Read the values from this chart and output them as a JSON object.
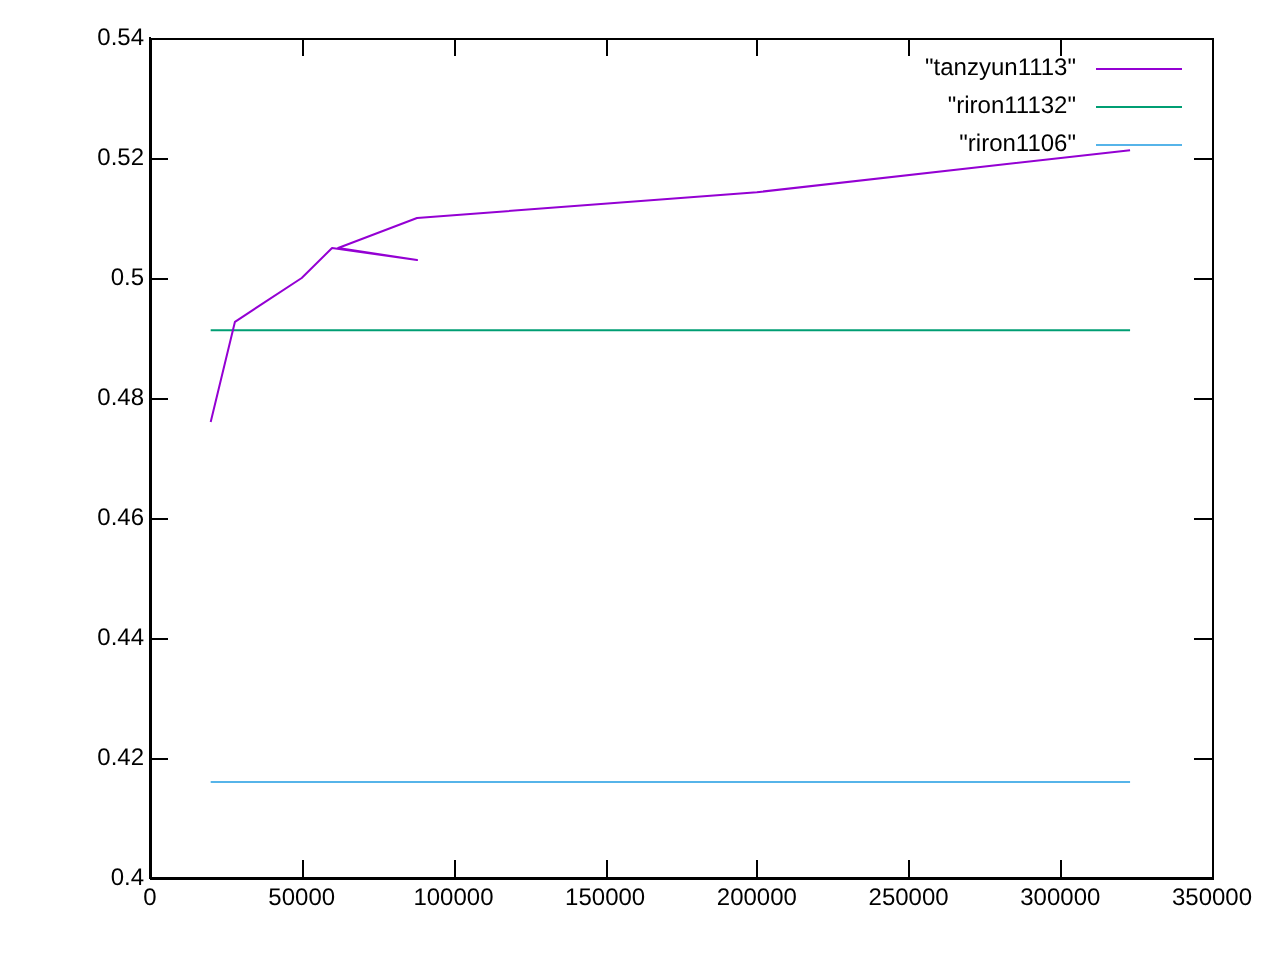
{
  "chart_data": {
    "type": "line",
    "series": [
      {
        "name": "\"tanzyun1113\"",
        "color": "#9400d3",
        "x": [
          20000,
          28000,
          50000,
          60000,
          88000,
          62000,
          88000,
          200000,
          323000
        ],
        "values": [
          0.476,
          0.4927,
          0.5,
          0.505,
          0.503,
          0.505,
          0.51,
          0.5143,
          0.5213
        ]
      },
      {
        "name": "\"riron11132\"",
        "color": "#009e73",
        "x": [
          20000,
          323000
        ],
        "values": [
          0.4913,
          0.4913
        ]
      },
      {
        "name": "\"riron1106\"",
        "color": "#56b4e9",
        "x": [
          20000,
          323000
        ],
        "values": [
          0.416,
          0.416
        ]
      }
    ],
    "xlim": [
      0,
      350000
    ],
    "xticks": [
      0,
      50000,
      100000,
      150000,
      200000,
      250000,
      300000,
      350000
    ],
    "ylim": [
      0.4,
      0.54
    ],
    "yticks": [
      0.4,
      0.42,
      0.44,
      0.46,
      0.48,
      0.5,
      0.52,
      0.54
    ],
    "grid": false,
    "legend": "top right",
    "marker": "none",
    "line_style": "solid"
  }
}
